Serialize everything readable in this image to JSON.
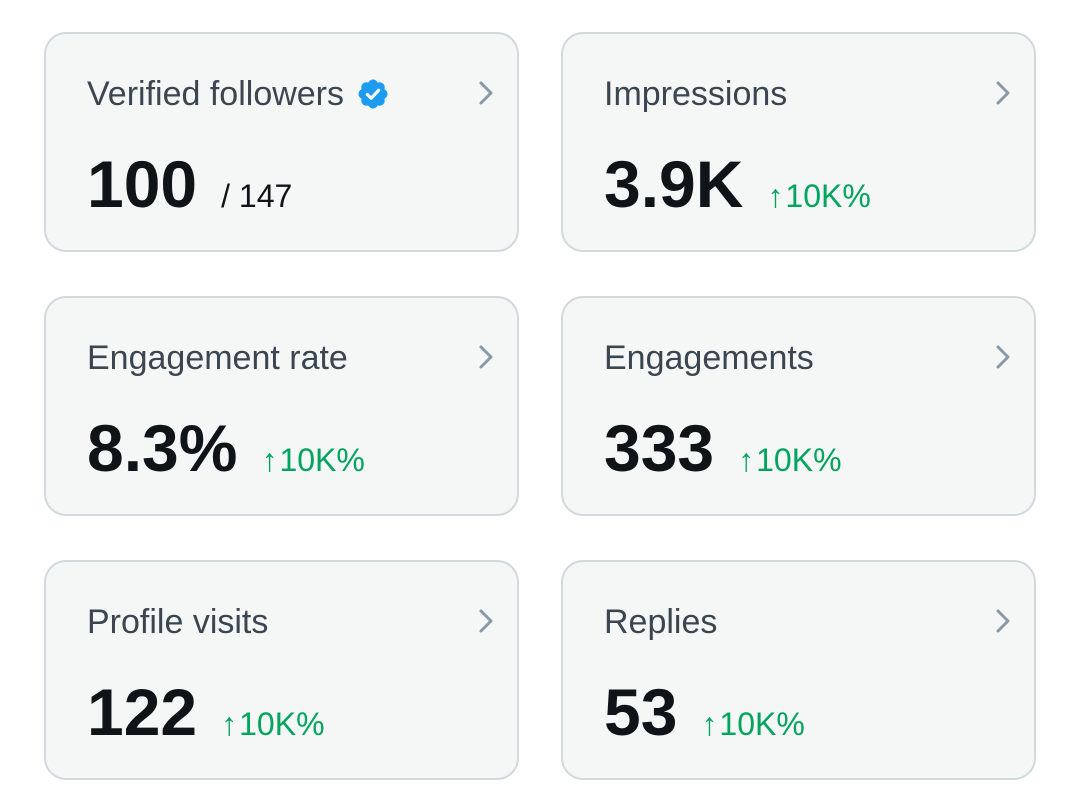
{
  "colors": {
    "card_bg": "#f5f7f7",
    "card_border": "#cfd9de",
    "title_text": "#3b4651",
    "value_text": "#0f1419",
    "positive_change": "#00a45c",
    "verified_badge": "#1d9bf0",
    "chevron": "#8a99a6"
  },
  "cards": [
    {
      "title": "Verified followers",
      "title_icon": "verified-badge-icon",
      "value": "100",
      "subvalue": "/ 147",
      "action_icon": "chevron-right-icon"
    },
    {
      "title": "Impressions",
      "value": "3.9K",
      "change_arrow": "↑",
      "change": "10K%",
      "action_icon": "chevron-right-icon"
    },
    {
      "title": "Engagement rate",
      "value": "8.3%",
      "change_arrow": "↑",
      "change": "10K%",
      "action_icon": "chevron-right-icon"
    },
    {
      "title": "Engagements",
      "value": "333",
      "change_arrow": "↑",
      "change": "10K%",
      "action_icon": "chevron-right-icon"
    },
    {
      "title": "Profile visits",
      "value": "122",
      "change_arrow": "↑",
      "change": "10K%",
      "action_icon": "chevron-right-icon"
    },
    {
      "title": "Replies",
      "value": "53",
      "change_arrow": "↑",
      "change": "10K%",
      "action_icon": "chevron-right-icon"
    }
  ]
}
